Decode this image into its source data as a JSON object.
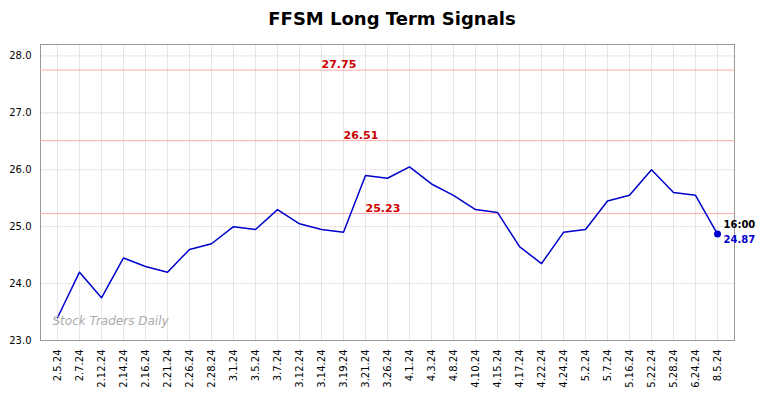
{
  "chart_data": {
    "type": "line",
    "title": "FFSM Long Term Signals",
    "categories": [
      "2.5.24",
      "2.7.24",
      "2.12.24",
      "2.14.24",
      "2.16.24",
      "2.21.24",
      "2.26.24",
      "2.28.24",
      "3.1.24",
      "3.5.24",
      "3.7.24",
      "3.12.24",
      "3.14.24",
      "3.19.24",
      "3.21.24",
      "3.26.24",
      "4.1.24",
      "4.3.24",
      "4.8.24",
      "4.10.24",
      "4.15.24",
      "4.17.24",
      "4.22.24",
      "4.24.24",
      "5.2.24",
      "5.7.24",
      "5.16.24",
      "5.22.24",
      "5.28.24",
      "6.24.24",
      "8.5.24"
    ],
    "values": [
      23.4,
      24.2,
      23.75,
      24.45,
      24.3,
      24.2,
      24.6,
      24.7,
      25.0,
      24.95,
      25.3,
      25.05,
      24.95,
      24.9,
      25.9,
      25.85,
      26.05,
      25.75,
      25.55,
      25.3,
      25.25,
      24.65,
      24.35,
      24.9,
      24.95,
      25.45,
      25.55,
      26.0,
      25.6,
      25.55,
      24.87
    ],
    "color": "#0000cc",
    "ylim": [
      23.0,
      28.2
    ],
    "yticks": [
      23,
      24,
      25,
      26,
      27,
      28
    ],
    "grid": true,
    "hlines": [
      {
        "value": 25.23,
        "label": "25.23",
        "x": "3.21.24",
        "color": "#ffaaaa",
        "text_color": "#cc0000"
      },
      {
        "value": 26.51,
        "label": "26.51",
        "x": "3.19.24",
        "color": "#ffaaaa",
        "text_color": "#cc0000"
      },
      {
        "value": 27.75,
        "label": "27.75",
        "x": "3.14.24",
        "color": "#ffaaaa",
        "text_color": "#cc0000"
      }
    ],
    "annotations": [
      {
        "x": "8.5.24",
        "y": 24.87,
        "text": "16:00",
        "color": "#000000",
        "position": "above"
      },
      {
        "x": "8.5.24",
        "y": 24.87,
        "text": "24.87",
        "color": "#0000cc",
        "position": "below",
        "marker": "o"
      },
      {
        "text": "Stock Traders Daily",
        "color": "#aaaaaa"
      }
    ]
  }
}
